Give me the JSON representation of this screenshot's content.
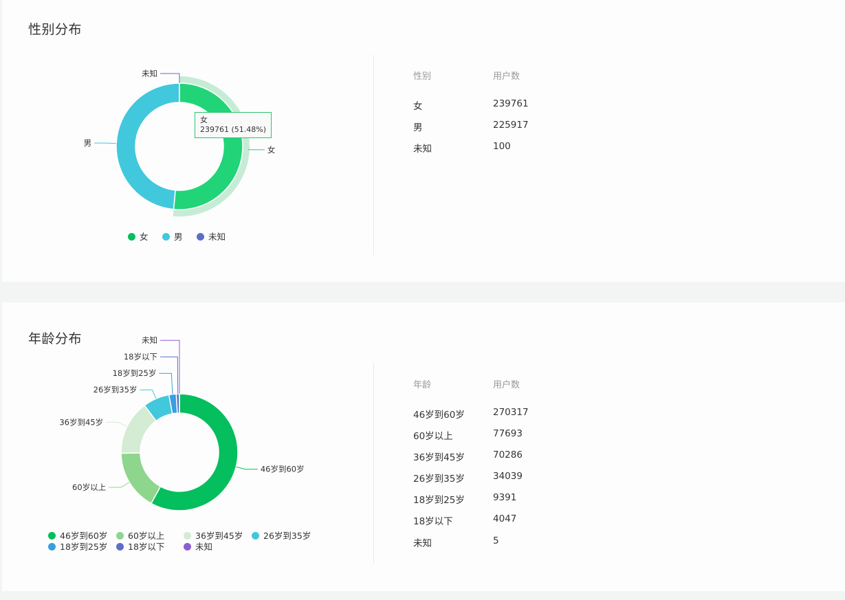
{
  "gender": {
    "title": "性别分布",
    "table_headers": [
      "性别",
      "用户数"
    ],
    "tooltip": {
      "label": "女",
      "value": "239761 (51.48%)"
    },
    "legend_labels": [
      "女",
      "男",
      "未知"
    ],
    "chart_data": {
      "type": "pie",
      "labels": [
        "女",
        "男",
        "未知"
      ],
      "values": [
        239761,
        225917,
        100
      ],
      "colors": [
        "#21d477",
        "#41c8dc",
        "#5b6fc8"
      ],
      "legend": "bottom"
    }
  },
  "age": {
    "title": "年龄分布",
    "table_headers": [
      "年龄",
      "用户数"
    ],
    "legend_labels": [
      "46岁到60岁",
      "60岁以上",
      "36岁到45岁",
      "26岁到35岁",
      "18岁到25岁",
      "18岁以下",
      "未知"
    ],
    "chart_data": {
      "type": "pie",
      "labels": [
        "46岁到60岁",
        "60岁以上",
        "36岁到45岁",
        "26岁到35岁",
        "18岁到25岁",
        "18岁以下",
        "未知"
      ],
      "values": [
        270317,
        77693,
        70286,
        34039,
        9391,
        4047,
        5
      ],
      "colors": [
        "#05be5e",
        "#8ed68e",
        "#d3ecd3",
        "#41c8dc",
        "#3a9ee0",
        "#5b6fc8",
        "#8c5ed0"
      ],
      "legend": "bottom"
    }
  }
}
